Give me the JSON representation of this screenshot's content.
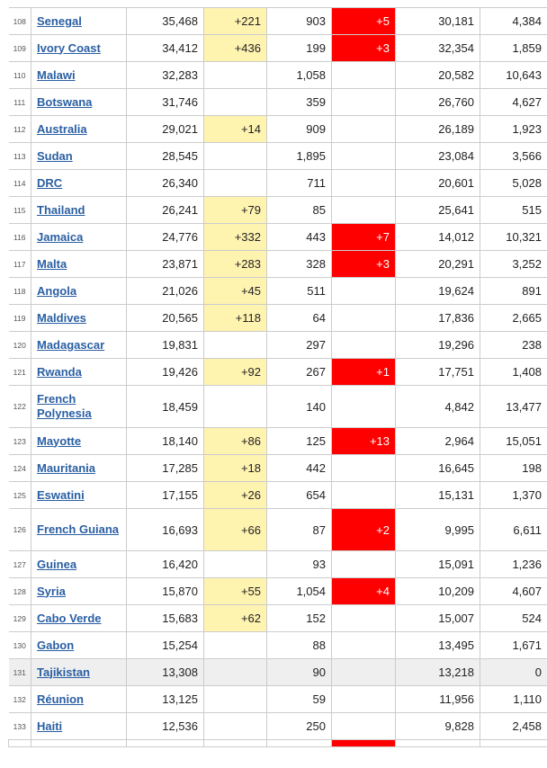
{
  "rows": [
    {
      "rank": "108",
      "country": "Senegal",
      "total_cases": "35,468",
      "new_cases": "+221",
      "total_deaths": "903",
      "new_deaths": "+5",
      "total_recovered": "30,181",
      "active_cases": "4,384"
    },
    {
      "rank": "109",
      "country": "Ivory Coast",
      "total_cases": "34,412",
      "new_cases": "+436",
      "total_deaths": "199",
      "new_deaths": "+3",
      "total_recovered": "32,354",
      "active_cases": "1,859"
    },
    {
      "rank": "110",
      "country": "Malawi",
      "total_cases": "32,283",
      "new_cases": "",
      "total_deaths": "1,058",
      "new_deaths": "",
      "total_recovered": "20,582",
      "active_cases": "10,643"
    },
    {
      "rank": "111",
      "country": "Botswana",
      "total_cases": "31,746",
      "new_cases": "",
      "total_deaths": "359",
      "new_deaths": "",
      "total_recovered": "26,760",
      "active_cases": "4,627"
    },
    {
      "rank": "112",
      "country": "Australia",
      "total_cases": "29,021",
      "new_cases": "+14",
      "total_deaths": "909",
      "new_deaths": "",
      "total_recovered": "26,189",
      "active_cases": "1,923"
    },
    {
      "rank": "113",
      "country": "Sudan",
      "total_cases": "28,545",
      "new_cases": "",
      "total_deaths": "1,895",
      "new_deaths": "",
      "total_recovered": "23,084",
      "active_cases": "3,566"
    },
    {
      "rank": "114",
      "country": "DRC",
      "total_cases": "26,340",
      "new_cases": "",
      "total_deaths": "711",
      "new_deaths": "",
      "total_recovered": "20,601",
      "active_cases": "5,028"
    },
    {
      "rank": "115",
      "country": "Thailand",
      "total_cases": "26,241",
      "new_cases": "+79",
      "total_deaths": "85",
      "new_deaths": "",
      "total_recovered": "25,641",
      "active_cases": "515"
    },
    {
      "rank": "116",
      "country": "Jamaica",
      "total_cases": "24,776",
      "new_cases": "+332",
      "total_deaths": "443",
      "new_deaths": "+7",
      "total_recovered": "14,012",
      "active_cases": "10,321"
    },
    {
      "rank": "117",
      "country": "Malta",
      "total_cases": "23,871",
      "new_cases": "+283",
      "total_deaths": "328",
      "new_deaths": "+3",
      "total_recovered": "20,291",
      "active_cases": "3,252"
    },
    {
      "rank": "118",
      "country": "Angola",
      "total_cases": "21,026",
      "new_cases": "+45",
      "total_deaths": "511",
      "new_deaths": "",
      "total_recovered": "19,624",
      "active_cases": "891"
    },
    {
      "rank": "119",
      "country": "Maldives",
      "total_cases": "20,565",
      "new_cases": "+118",
      "total_deaths": "64",
      "new_deaths": "",
      "total_recovered": "17,836",
      "active_cases": "2,665"
    },
    {
      "rank": "120",
      "country": "Madagascar",
      "total_cases": "19,831",
      "new_cases": "",
      "total_deaths": "297",
      "new_deaths": "",
      "total_recovered": "19,296",
      "active_cases": "238"
    },
    {
      "rank": "121",
      "country": "Rwanda",
      "total_cases": "19,426",
      "new_cases": "+92",
      "total_deaths": "267",
      "new_deaths": "+1",
      "total_recovered": "17,751",
      "active_cases": "1,408"
    },
    {
      "rank": "122",
      "country": "French Polynesia",
      "total_cases": "18,459",
      "new_cases": "",
      "total_deaths": "140",
      "new_deaths": "",
      "total_recovered": "4,842",
      "active_cases": "13,477"
    },
    {
      "rank": "123",
      "country": "Mayotte",
      "total_cases": "18,140",
      "new_cases": "+86",
      "total_deaths": "125",
      "new_deaths": "+13",
      "total_recovered": "2,964",
      "active_cases": "15,051"
    },
    {
      "rank": "124",
      "country": "Mauritania",
      "total_cases": "17,285",
      "new_cases": "+18",
      "total_deaths": "442",
      "new_deaths": "",
      "total_recovered": "16,645",
      "active_cases": "198"
    },
    {
      "rank": "125",
      "country": "Eswatini",
      "total_cases": "17,155",
      "new_cases": "+26",
      "total_deaths": "654",
      "new_deaths": "",
      "total_recovered": "15,131",
      "active_cases": "1,370"
    },
    {
      "rank": "126",
      "country": "French Guiana",
      "total_cases": "16,693",
      "new_cases": "+66",
      "total_deaths": "87",
      "new_deaths": "+2",
      "total_recovered": "9,995",
      "active_cases": "6,611"
    },
    {
      "rank": "127",
      "country": "Guinea",
      "total_cases": "16,420",
      "new_cases": "",
      "total_deaths": "93",
      "new_deaths": "",
      "total_recovered": "15,091",
      "active_cases": "1,236"
    },
    {
      "rank": "128",
      "country": "Syria",
      "total_cases": "15,870",
      "new_cases": "+55",
      "total_deaths": "1,054",
      "new_deaths": "+4",
      "total_recovered": "10,209",
      "active_cases": "4,607"
    },
    {
      "rank": "129",
      "country": "Cabo Verde",
      "total_cases": "15,683",
      "new_cases": "+62",
      "total_deaths": "152",
      "new_deaths": "",
      "total_recovered": "15,007",
      "active_cases": "524"
    },
    {
      "rank": "130",
      "country": "Gabon",
      "total_cases": "15,254",
      "new_cases": "",
      "total_deaths": "88",
      "new_deaths": "",
      "total_recovered": "13,495",
      "active_cases": "1,671"
    },
    {
      "rank": "131",
      "country": "Tajikistan",
      "total_cases": "13,308",
      "new_cases": "",
      "total_deaths": "90",
      "new_deaths": "",
      "total_recovered": "13,218",
      "active_cases": "0"
    },
    {
      "rank": "132",
      "country": "Réunion",
      "total_cases": "13,125",
      "new_cases": "",
      "total_deaths": "59",
      "new_deaths": "",
      "total_recovered": "11,956",
      "active_cases": "1,110"
    },
    {
      "rank": "133",
      "country": "Haiti",
      "total_cases": "12,536",
      "new_cases": "",
      "total_deaths": "250",
      "new_deaths": "",
      "total_recovered": "9,828",
      "active_cases": "2,458"
    }
  ],
  "colors": {
    "link": "#2a5fa3",
    "new_cases_bg": "#fff3b0",
    "new_deaths_bg": "#ff0000",
    "zero_active_row_bg": "#efefef",
    "border": "#cccccc"
  }
}
